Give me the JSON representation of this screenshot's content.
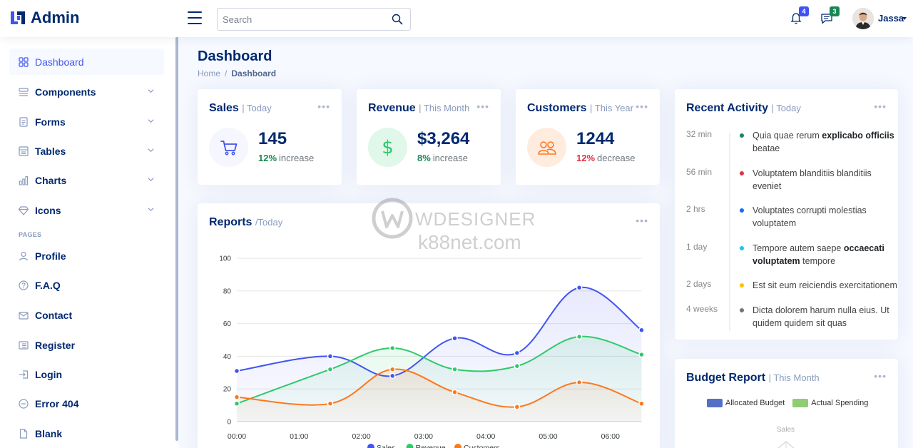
{
  "header": {
    "brand": "Admin",
    "search_placeholder": "Search",
    "notifications_count": "4",
    "messages_count": "3",
    "user_name": "Jassa"
  },
  "sidebar": {
    "items": [
      {
        "label": "Dashboard",
        "icon": "grid-icon"
      },
      {
        "label": "Components",
        "icon": "menu-button-icon"
      },
      {
        "label": "Forms",
        "icon": "journal-text-icon"
      },
      {
        "label": "Tables",
        "icon": "layout-text-icon"
      },
      {
        "label": "Charts",
        "icon": "bar-chart-icon"
      },
      {
        "label": "Icons",
        "icon": "gem-icon"
      }
    ],
    "pages_heading": "PAGES",
    "pages": [
      {
        "label": "Profile",
        "icon": "person-icon"
      },
      {
        "label": "F.A.Q",
        "icon": "question-circle-icon"
      },
      {
        "label": "Contact",
        "icon": "envelope-icon"
      },
      {
        "label": "Register",
        "icon": "card-list-icon"
      },
      {
        "label": "Login",
        "icon": "box-arrow-in-right-icon"
      },
      {
        "label": "Error 404",
        "icon": "dash-circle-icon"
      },
      {
        "label": "Blank",
        "icon": "file-icon"
      }
    ]
  },
  "page": {
    "title": "Dashboard",
    "breadcrumb": [
      "Home",
      "/",
      "Dashboard"
    ]
  },
  "stats": {
    "sales": {
      "title": "Sales",
      "period": "| Today",
      "value": "145",
      "pct": "12%",
      "word": "increase",
      "pct_color": "#198754"
    },
    "revenue": {
      "title": "Revenue",
      "period": "| This Month",
      "value": "$3,264",
      "pct": "8%",
      "word": "increase",
      "pct_color": "#198754"
    },
    "customers": {
      "title": "Customers",
      "period": "| This Year",
      "value": "1244",
      "pct": "12%",
      "word": "decrease",
      "pct_color": "#dc3545"
    }
  },
  "reports": {
    "title": "Reports",
    "period": "/Today"
  },
  "chart_data": {
    "type": "area",
    "x": [
      "00:00",
      "01:00",
      "02:00",
      "03:00",
      "04:00",
      "05:00",
      "06:00"
    ],
    "ylim": [
      0,
      100
    ],
    "yticks": [
      0,
      20,
      40,
      60,
      80,
      100
    ],
    "grid": true,
    "legend_position": "bottom",
    "series": [
      {
        "name": "Sales",
        "color": "#4154f1",
        "points": [
          [
            0,
            31
          ],
          [
            1.5,
            40
          ],
          [
            2.5,
            28
          ],
          [
            3.5,
            51
          ],
          [
            4.5,
            42
          ],
          [
            5.5,
            82
          ],
          [
            6.5,
            56
          ]
        ]
      },
      {
        "name": "Revenue",
        "color": "#2eca6a",
        "points": [
          [
            0,
            11
          ],
          [
            1.5,
            32
          ],
          [
            2.5,
            45
          ],
          [
            3.5,
            32
          ],
          [
            4.5,
            34
          ],
          [
            5.5,
            52
          ],
          [
            6.5,
            41
          ]
        ]
      },
      {
        "name": "Customers",
        "color": "#ff771d",
        "points": [
          [
            0,
            15
          ],
          [
            1.5,
            11
          ],
          [
            2.5,
            32
          ],
          [
            3.5,
            18
          ],
          [
            4.5,
            9
          ],
          [
            5.5,
            24
          ],
          [
            6.5,
            11
          ]
        ]
      }
    ]
  },
  "activity": {
    "title": "Recent Activity",
    "period": "| Today",
    "items": [
      {
        "time": "32 min",
        "color": "#198754",
        "pre": "Quia quae rerum ",
        "bold": "explicabo officiis",
        "post": " beatae"
      },
      {
        "time": "56 min",
        "color": "#dc3545",
        "pre": "Voluptatem blanditiis blanditiis eveniet",
        "bold": "",
        "post": ""
      },
      {
        "time": "2 hrs",
        "color": "#0d6efd",
        "pre": "Voluptates corrupti molestias voluptatem",
        "bold": "",
        "post": ""
      },
      {
        "time": "1 day",
        "color": "#0dcaf0",
        "pre": "Tempore autem saepe ",
        "bold": "occaecati voluptatem",
        "post": " tempore"
      },
      {
        "time": "2 days",
        "color": "#ffc107",
        "pre": "Est sit eum reiciendis exercitationem",
        "bold": "",
        "post": ""
      },
      {
        "time": "4 weeks",
        "color": "#6c757d",
        "pre": "Dicta dolorem harum nulla eius. Ut quidem quidem sit quas",
        "bold": "",
        "post": ""
      }
    ]
  },
  "budget": {
    "title": "Budget Report",
    "period": "| This Month",
    "legend": [
      {
        "name": "Allocated Budget",
        "color": "#5470c6"
      },
      {
        "name": "Actual Spending",
        "color": "#91cc75"
      }
    ],
    "radar_label": "Sales"
  },
  "watermark": {
    "line1": "WDESIGNER",
    "line2": "k88net.com"
  }
}
